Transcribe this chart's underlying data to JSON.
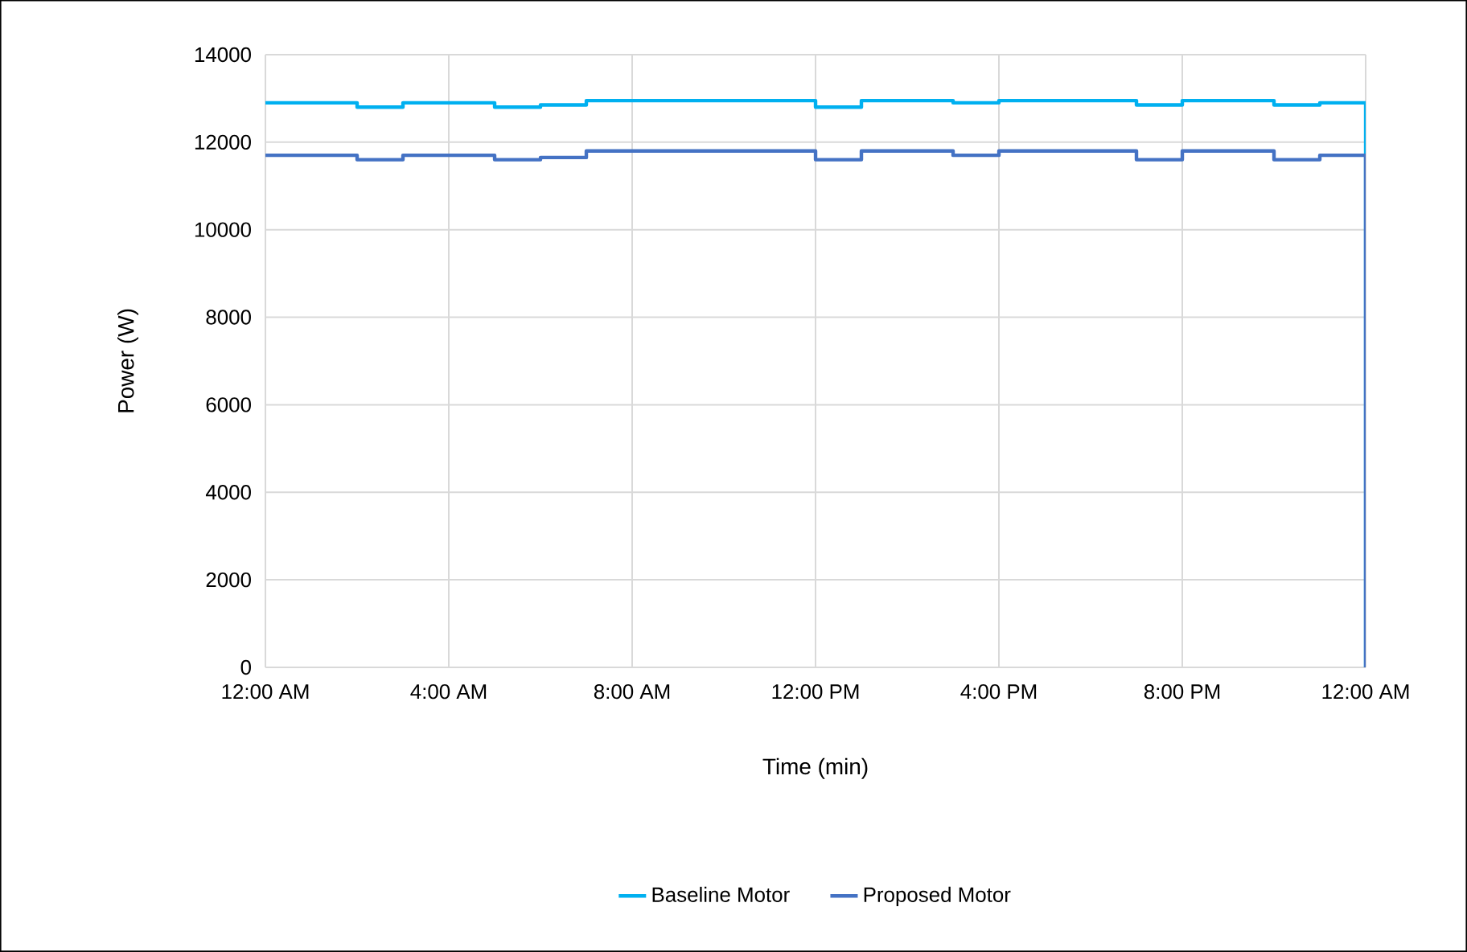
{
  "chart_data": {
    "type": "step",
    "xlabel": "Time (min)",
    "ylabel": "Power (W)",
    "xlim": [
      0,
      24
    ],
    "ylim": [
      0,
      14000
    ],
    "xticks": [
      {
        "value": 0,
        "label": "12:00 AM"
      },
      {
        "value": 4,
        "label": "4:00 AM"
      },
      {
        "value": 8,
        "label": "8:00 AM"
      },
      {
        "value": 12,
        "label": "12:00 PM"
      },
      {
        "value": 16,
        "label": "4:00 PM"
      },
      {
        "value": 20,
        "label": "8:00 PM"
      },
      {
        "value": 24,
        "label": "12:00 AM"
      }
    ],
    "yticks": [
      0,
      2000,
      4000,
      6000,
      8000,
      10000,
      12000,
      14000
    ],
    "grid": true,
    "legend": "bottom",
    "marker": "none",
    "line_style": "solid",
    "series": [
      {
        "name": "Baseline Motor",
        "color": "#00b0f0",
        "x": [
          0,
          2,
          3,
          5,
          6,
          7,
          12,
          13,
          15,
          16,
          19,
          20,
          22,
          23,
          24
        ],
        "values": [
          12900,
          12800,
          12900,
          12800,
          12850,
          12950,
          12800,
          12950,
          12900,
          12950,
          12850,
          12950,
          12850,
          12900,
          0
        ]
      },
      {
        "name": "Proposed Motor",
        "color": "#4472c4",
        "x": [
          0,
          2,
          3,
          5,
          6,
          7,
          12,
          13,
          15,
          16,
          19,
          20,
          22,
          23,
          24
        ],
        "values": [
          11700,
          11600,
          11700,
          11600,
          11650,
          11800,
          11600,
          11800,
          11700,
          11800,
          11600,
          11800,
          11600,
          11700,
          0
        ]
      }
    ]
  }
}
